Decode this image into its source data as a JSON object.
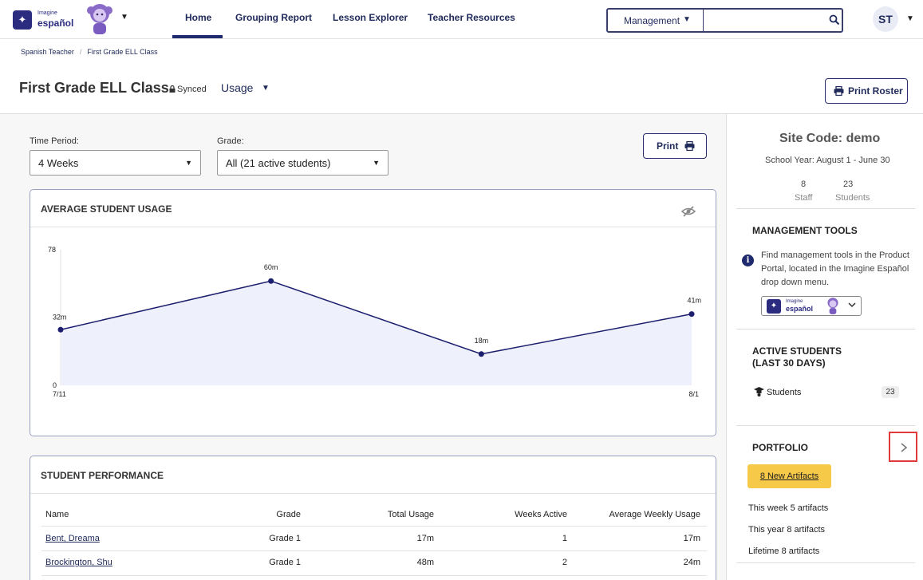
{
  "brand": {
    "line1": "Imagine",
    "line2": "español"
  },
  "nav": {
    "items": [
      {
        "label": "Home",
        "active": true
      },
      {
        "label": "Grouping Report"
      },
      {
        "label": "Lesson Explorer"
      },
      {
        "label": "Teacher Resources"
      }
    ]
  },
  "search": {
    "scope": "Management",
    "value": ""
  },
  "user": {
    "initials": "ST"
  },
  "breadcrumb": [
    "Spanish Teacher",
    "First Grade ELL Class"
  ],
  "page": {
    "title": "First Grade ELL Class",
    "synced": "Synced",
    "view": "Usage",
    "print_roster": "Print Roster"
  },
  "filters": {
    "time_period_label": "Time Period:",
    "time_period_value": "4 Weeks",
    "grade_label": "Grade:",
    "grade_value": "All (21 active students)"
  },
  "print_label": "Print",
  "usage_card": {
    "title": "AVERAGE STUDENT USAGE"
  },
  "chart_data": {
    "type": "area",
    "x": [
      "7/11",
      "",
      "",
      "8/1"
    ],
    "values": [
      32,
      60,
      18,
      41
    ],
    "labels": [
      "32m",
      "60m",
      "18m",
      "41m"
    ],
    "ylim": [
      0,
      78
    ],
    "yticks": [
      "0",
      "78"
    ],
    "x_tick_labels": [
      "7/11",
      "8/1"
    ],
    "line_color": "#1c1f6e",
    "fill_color": "#eef0fb"
  },
  "performance": {
    "title": "STUDENT PERFORMANCE",
    "columns": [
      "Name",
      "Grade",
      "Total Usage",
      "Weeks Active",
      "Average Weekly Usage"
    ],
    "rows": [
      [
        "Bent, Dreama",
        "Grade 1",
        "17m",
        "1",
        "17m"
      ],
      [
        "Brockington, Shu",
        "Grade 1",
        "48m",
        "2",
        "24m"
      ]
    ]
  },
  "site": {
    "code": "Site Code: demo",
    "school_year": "School Year: August 1 - June 30",
    "staff_count": "8",
    "staff_label": "Staff",
    "students_count": "23",
    "students_label": "Students"
  },
  "management_tools": {
    "title": "MANAGEMENT TOOLS",
    "text": "Find management tools in the Product Portal, located in the Imagine Español drop down menu."
  },
  "active_students": {
    "title_line1": "ACTIVE STUDENTS",
    "title_line2": "(LAST 30 DAYS)",
    "row_label": "Students",
    "row_count": "23"
  },
  "portfolio": {
    "title": "PORTFOLIO",
    "new_artifacts": "8 New Artifacts",
    "this_week_label": "This week",
    "this_week_value": "5 artifacts",
    "this_year_label": "This year",
    "this_year_value": "8 artifacts",
    "lifetime_label": "Lifetime",
    "lifetime_value": "8 artifacts"
  },
  "colors": {
    "brand": "#2b2b80",
    "nav_text": "#1f2a5a",
    "badge": "#f7c948",
    "highlight": "#e03a3a"
  }
}
